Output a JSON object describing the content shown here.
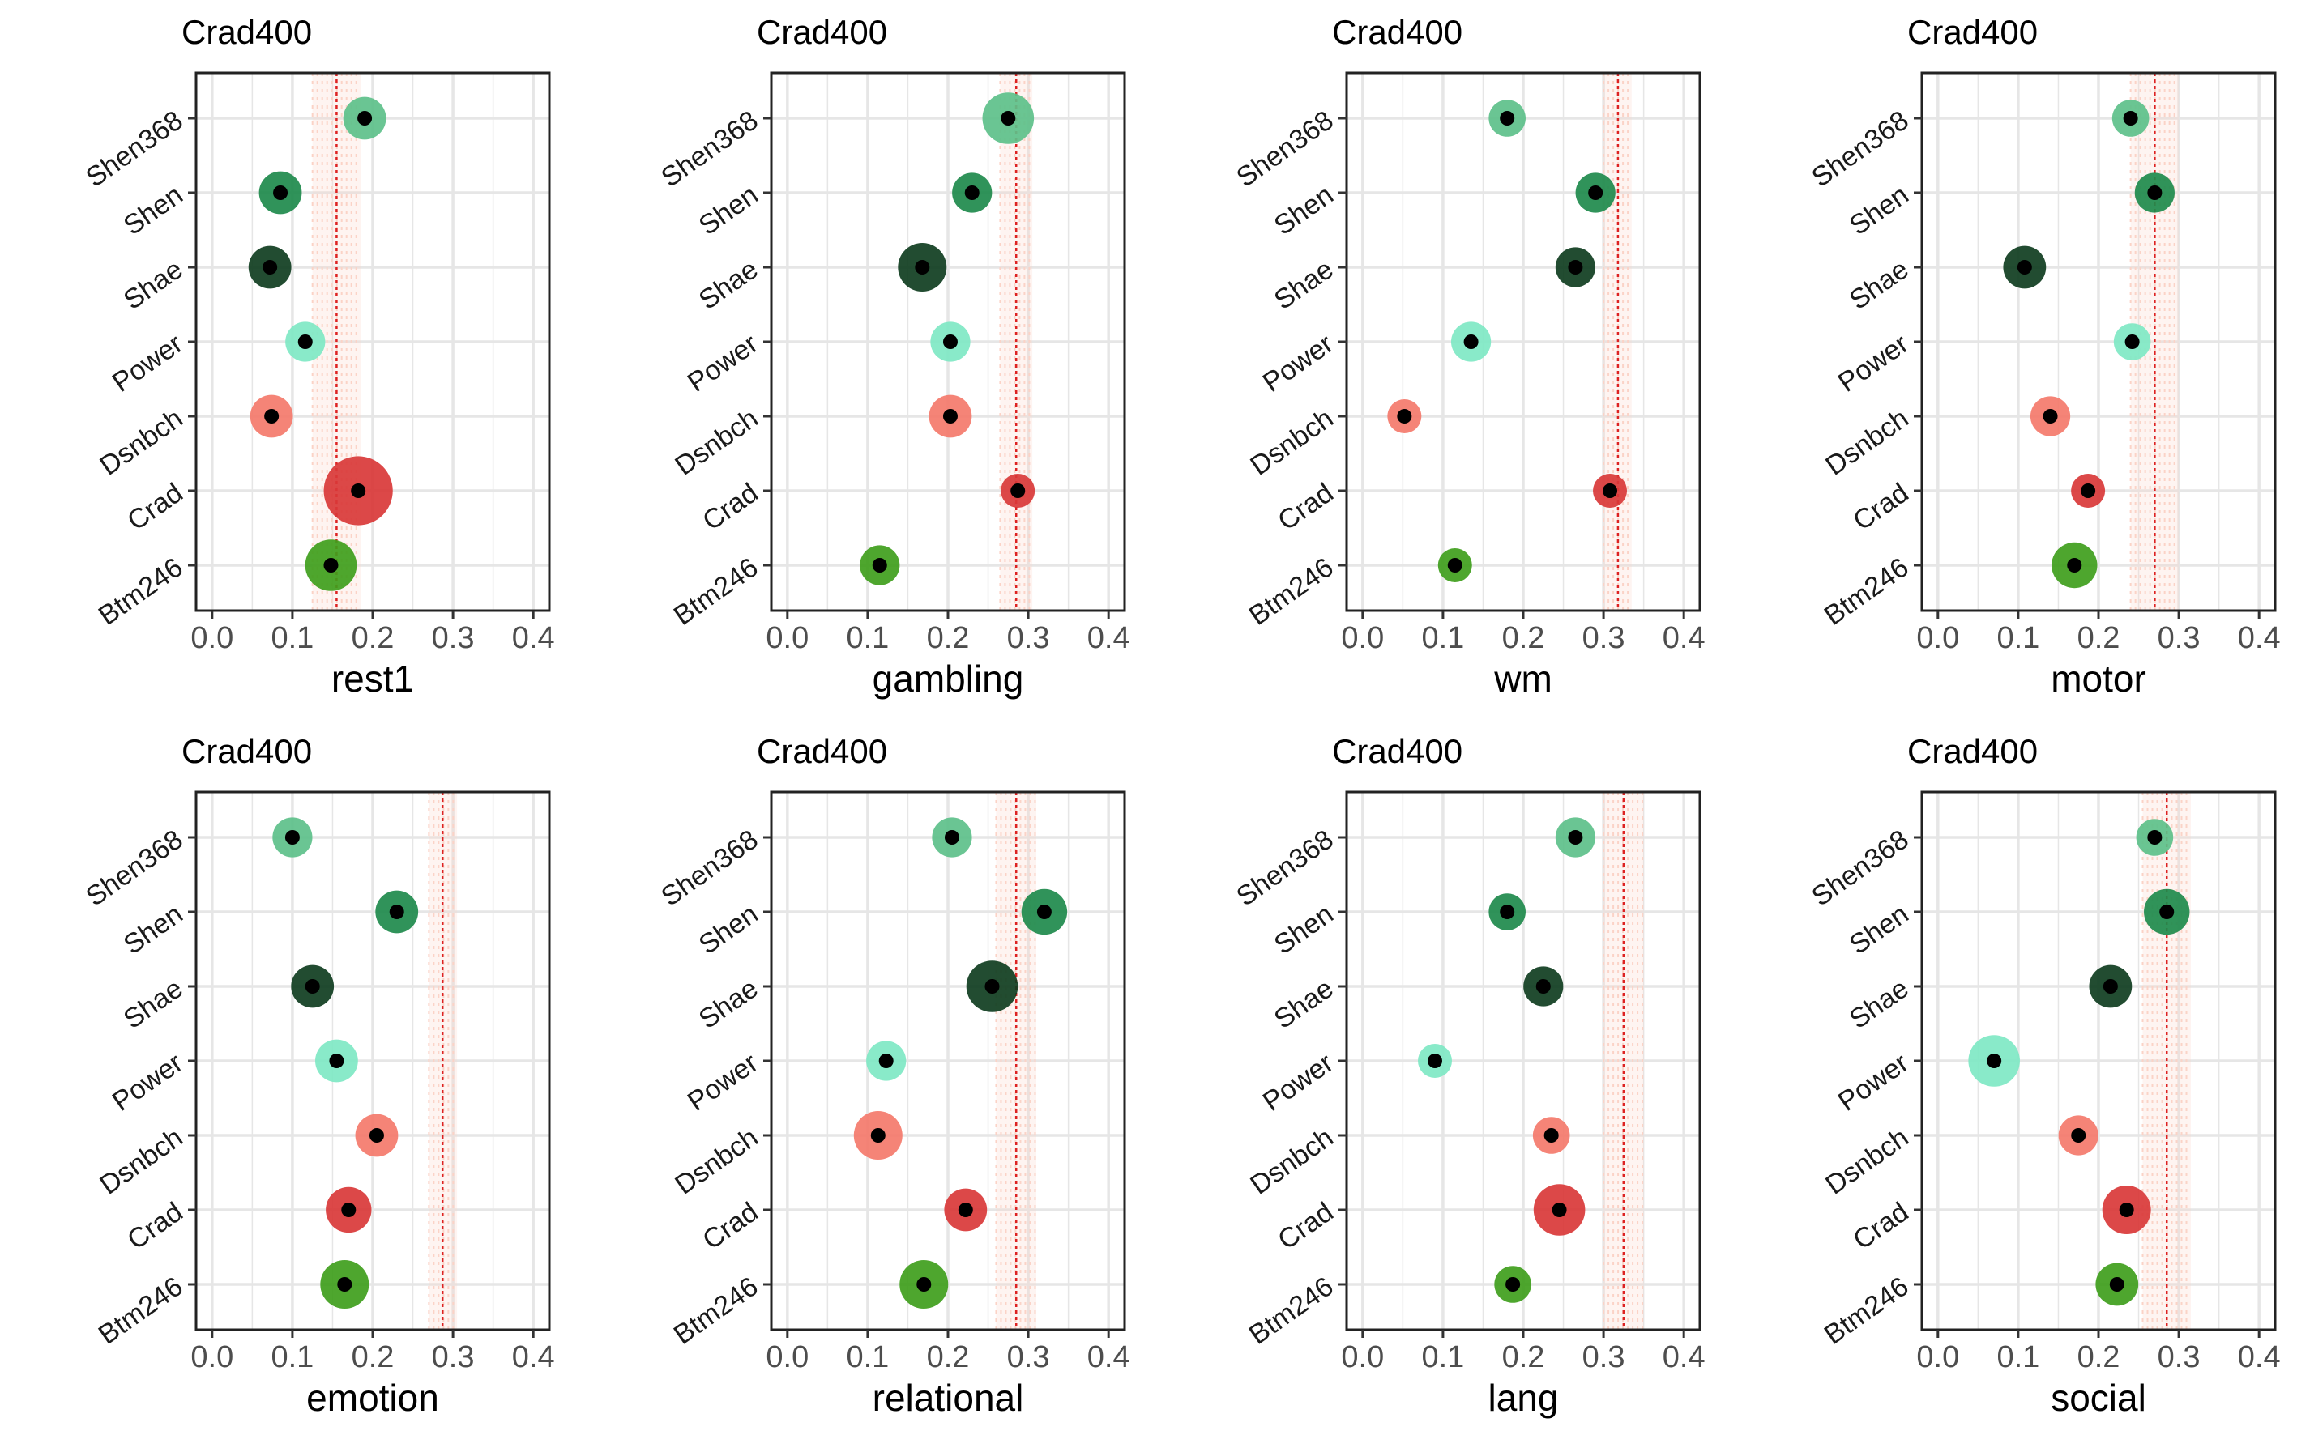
{
  "chart_data": [
    {
      "type": "scatter",
      "title": "Crad400",
      "xlabel": "rest1",
      "xlim": [
        -0.02,
        0.42
      ],
      "xticks": [
        0.0,
        0.1,
        0.2,
        0.3,
        0.4
      ],
      "xtick_labels": [
        "0.0",
        "0.1",
        "0.2",
        "0.3",
        "0.4"
      ],
      "categories": [
        "Shen368",
        "Shen",
        "Shae",
        "Power",
        "Dsnbch",
        "Crad",
        "Btm246"
      ],
      "values": [
        0.19,
        0.085,
        0.072,
        0.116,
        0.074,
        0.182,
        0.148
      ],
      "sizes": [
        0.4,
        0.4,
        0.4,
        0.35,
        0.4,
        0.85,
        0.55
      ],
      "reference_value": 0.155,
      "reference_band": [
        0.125,
        0.185
      ],
      "grid": true
    },
    {
      "type": "scatter",
      "title": "Crad400",
      "xlabel": "gambling",
      "xlim": [
        -0.02,
        0.42
      ],
      "xticks": [
        0.0,
        0.1,
        0.2,
        0.3,
        0.4
      ],
      "xtick_labels": [
        "0.0",
        "0.1",
        "0.2",
        "0.3",
        "0.4"
      ],
      "categories": [
        "Shen368",
        "Shen",
        "Shae",
        "Power",
        "Dsnbch",
        "Crad",
        "Btm246"
      ],
      "values": [
        0.275,
        0.23,
        0.168,
        0.203,
        0.203,
        0.287,
        0.115
      ],
      "sizes": [
        0.55,
        0.35,
        0.5,
        0.35,
        0.4,
        0.25,
        0.35
      ],
      "reference_value": 0.285,
      "reference_band": [
        0.265,
        0.305
      ],
      "grid": true
    },
    {
      "type": "scatter",
      "title": "Crad400",
      "xlabel": "wm",
      "xlim": [
        -0.02,
        0.42
      ],
      "xticks": [
        0.0,
        0.1,
        0.2,
        0.3,
        0.4
      ],
      "xtick_labels": [
        "0.0",
        "0.1",
        "0.2",
        "0.3",
        "0.4"
      ],
      "categories": [
        "Shen368",
        "Shen",
        "Shae",
        "Power",
        "Dsnbch",
        "Crad",
        "Btm246"
      ],
      "values": [
        0.18,
        0.29,
        0.265,
        0.135,
        0.052,
        0.308,
        0.115
      ],
      "sizes": [
        0.3,
        0.35,
        0.35,
        0.35,
        0.25,
        0.25,
        0.25
      ],
      "reference_value": 0.318,
      "reference_band": [
        0.3,
        0.335
      ],
      "grid": true
    },
    {
      "type": "scatter",
      "title": "Crad400",
      "xlabel": "motor",
      "xlim": [
        -0.02,
        0.42
      ],
      "xticks": [
        0.0,
        0.1,
        0.2,
        0.3,
        0.4
      ],
      "xtick_labels": [
        "0.0",
        "0.1",
        "0.2",
        "0.3",
        "0.4"
      ],
      "categories": [
        "Shen368",
        "Shen",
        "Shae",
        "Power",
        "Dsnbch",
        "Crad",
        "Btm246"
      ],
      "values": [
        0.24,
        0.27,
        0.108,
        0.242,
        0.14,
        0.187,
        0.17
      ],
      "sizes": [
        0.3,
        0.35,
        0.4,
        0.3,
        0.35,
        0.25,
        0.45
      ],
      "reference_value": 0.27,
      "reference_band": [
        0.24,
        0.3
      ],
      "grid": true
    },
    {
      "type": "scatter",
      "title": "Crad400",
      "xlabel": "emotion",
      "xlim": [
        -0.02,
        0.42
      ],
      "xticks": [
        0.0,
        0.1,
        0.2,
        0.3,
        0.4
      ],
      "xtick_labels": [
        "0.0",
        "0.1",
        "0.2",
        "0.3",
        "0.4"
      ],
      "categories": [
        "Shen368",
        "Shen",
        "Shae",
        "Power",
        "Dsnbch",
        "Crad",
        "Btm246"
      ],
      "values": [
        0.1,
        0.23,
        0.125,
        0.155,
        0.205,
        0.17,
        0.165
      ],
      "sizes": [
        0.35,
        0.4,
        0.4,
        0.4,
        0.4,
        0.45,
        0.5
      ],
      "reference_value": 0.287,
      "reference_band": [
        0.27,
        0.305
      ],
      "grid": true
    },
    {
      "type": "scatter",
      "title": "Crad400",
      "xlabel": "relational",
      "xlim": [
        -0.02,
        0.42
      ],
      "xticks": [
        0.0,
        0.1,
        0.2,
        0.3,
        0.4
      ],
      "xtick_labels": [
        "0.0",
        "0.1",
        "0.2",
        "0.3",
        "0.4"
      ],
      "categories": [
        "Shen368",
        "Shen",
        "Shae",
        "Power",
        "Dsnbch",
        "Crad",
        "Btm246"
      ],
      "values": [
        0.205,
        0.32,
        0.255,
        0.123,
        0.113,
        0.222,
        0.17
      ],
      "sizes": [
        0.35,
        0.45,
        0.55,
        0.35,
        0.5,
        0.4,
        0.5
      ],
      "reference_value": 0.285,
      "reference_band": [
        0.26,
        0.31
      ],
      "grid": true
    },
    {
      "type": "scatter",
      "title": "Crad400",
      "xlabel": "lang",
      "xlim": [
        -0.02,
        0.42
      ],
      "xticks": [
        0.0,
        0.1,
        0.2,
        0.3,
        0.4
      ],
      "xtick_labels": [
        "0.0",
        "0.1",
        "0.2",
        "0.3",
        "0.4"
      ],
      "categories": [
        "Shen368",
        "Shen",
        "Shae",
        "Power",
        "Dsnbch",
        "Crad",
        "Btm246"
      ],
      "values": [
        0.265,
        0.18,
        0.225,
        0.09,
        0.235,
        0.245,
        0.187
      ],
      "sizes": [
        0.35,
        0.3,
        0.35,
        0.25,
        0.3,
        0.55,
        0.3
      ],
      "reference_value": 0.325,
      "reference_band": [
        0.3,
        0.35
      ],
      "grid": true
    },
    {
      "type": "scatter",
      "title": "Crad400",
      "xlabel": "social",
      "xlim": [
        -0.02,
        0.42
      ],
      "xticks": [
        0.0,
        0.1,
        0.2,
        0.3,
        0.4
      ],
      "xtick_labels": [
        "0.0",
        "0.1",
        "0.2",
        "0.3",
        "0.4"
      ],
      "categories": [
        "Shen368",
        "Shen",
        "Shae",
        "Power",
        "Dsnbch",
        "Crad",
        "Btm246"
      ],
      "values": [
        0.27,
        0.285,
        0.215,
        0.07,
        0.175,
        0.235,
        0.223
      ],
      "sizes": [
        0.3,
        0.45,
        0.4,
        0.55,
        0.35,
        0.5,
        0.4
      ],
      "reference_value": 0.285,
      "reference_band": [
        0.255,
        0.315
      ],
      "grid": true
    }
  ],
  "colors": {
    "Shen368": "#5dc08a",
    "Shen": "#1e8a4c",
    "Shae": "#0f3d20",
    "Power": "#7fe8c4",
    "Dsnbch": "#f47a6b",
    "Crad": "#d93838",
    "Btm246": "#3f9e1c",
    "reference_line": "#dd2222",
    "reference_band": "#fbd3c7",
    "grid": "#e6e6e6",
    "center_dot": "#000000"
  }
}
